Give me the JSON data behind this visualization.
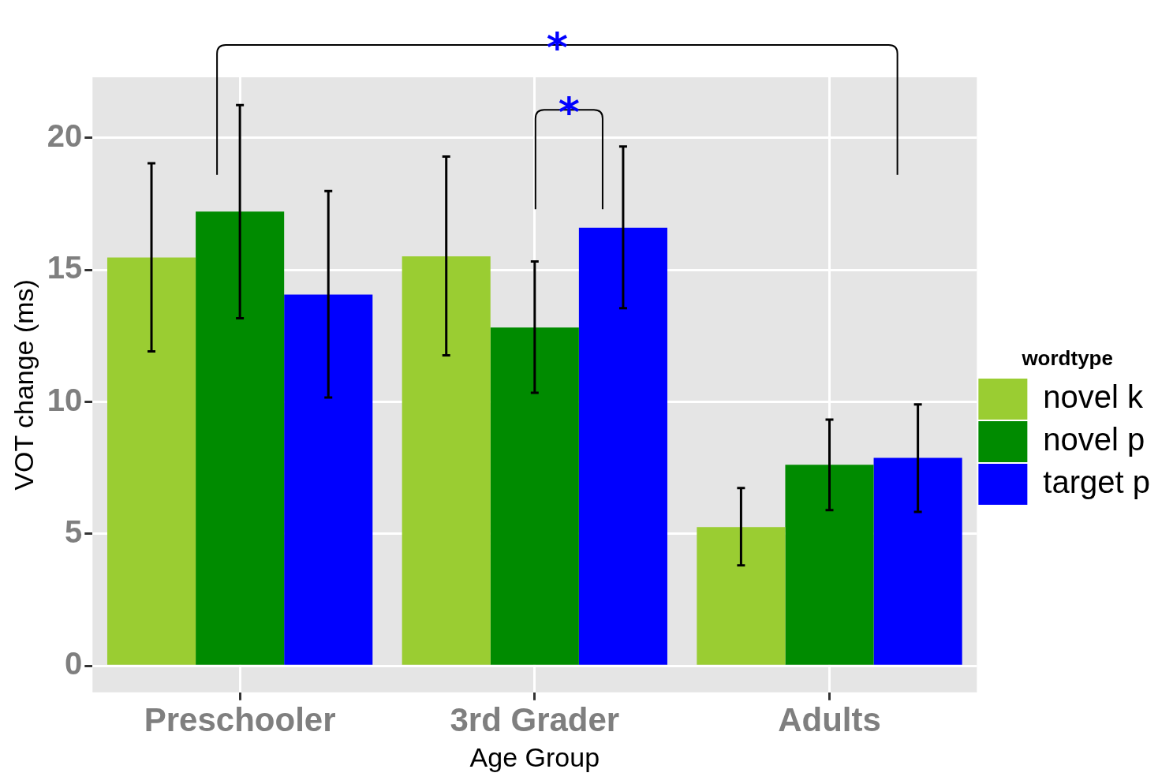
{
  "chart_data": {
    "type": "bar",
    "xlabel": "Age Group",
    "ylabel": "VOT change (ms)",
    "legend_title": "wordtype",
    "categories": [
      "Preschooler",
      "3rd Grader",
      "Adults"
    ],
    "series": [
      {
        "name": "novel k",
        "color": "#9acd32",
        "values": [
          15.47,
          15.52,
          5.26
        ],
        "errors": [
          [
            11.92,
            19.04
          ],
          [
            11.77,
            19.3
          ],
          [
            3.81,
            6.74
          ]
        ]
      },
      {
        "name": "novel p",
        "color": "#008b00",
        "values": [
          17.21,
          12.82,
          7.62
        ],
        "errors": [
          [
            13.17,
            21.25
          ],
          [
            10.35,
            15.32
          ],
          [
            5.9,
            9.33
          ]
        ]
      },
      {
        "name": "target p",
        "color": "#0000ff",
        "values": [
          14.07,
          16.6,
          7.88
        ],
        "errors": [
          [
            10.17,
            17.99
          ],
          [
            13.55,
            19.68
          ],
          [
            5.84,
            9.91
          ]
        ]
      }
    ],
    "ylim": [
      -1,
      22.3
    ],
    "yticks": [
      0,
      5,
      10,
      15,
      20
    ],
    "grid": true,
    "legend": "right",
    "annotations": [
      "*",
      "*"
    ]
  }
}
